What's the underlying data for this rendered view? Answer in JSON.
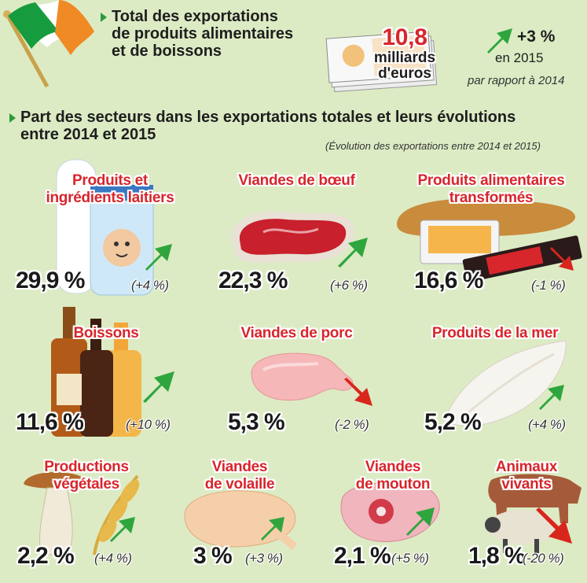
{
  "header": {
    "total_title_line1": "Total des exportations",
    "total_title_line2": "de produits alimentaires",
    "total_title_line3": "et de boissons",
    "amount_value": "10,8",
    "amount_unit_line1": "milliards",
    "amount_unit_line2": "d'euros",
    "growth_value": "+3 %",
    "growth_year": "en 2015",
    "growth_comparison": "par rapport à 2014"
  },
  "section": {
    "title_line1": "Part des secteurs dans les exportations totales et leurs évolutions",
    "title_line2": "entre 2014 et 2015",
    "note": "(Évolution des exportations entre 2014 et 2015)"
  },
  "colors": {
    "up": "#2fa53e",
    "down": "#d9261c",
    "title": "#d7262c",
    "background": "#dcebc4"
  },
  "sectors": [
    {
      "name_line1": "Produits et",
      "name_line2": "ingrédients laitiers",
      "share": "29,9 %",
      "change": "(+4 %)",
      "trend": "up",
      "icon": "milk-bottle-icon"
    },
    {
      "name_line1": "Viandes de bœuf",
      "name_line2": "",
      "share": "22,3 %",
      "change": "(+6 %)",
      "trend": "up",
      "icon": "beef-steak-icon"
    },
    {
      "name_line1": "Produits alimentaires",
      "name_line2": "transformés",
      "share": "16,6 %",
      "change": "(-1 %)",
      "trend": "down",
      "icon": "processed-food-icon"
    },
    {
      "name_line1": "Boissons",
      "name_line2": "",
      "share": "11,6 %",
      "change": "(+10 %)",
      "trend": "up",
      "icon": "bottles-icon"
    },
    {
      "name_line1": "Viandes de porc",
      "name_line2": "",
      "share": "5,3 %",
      "change": "(-2 %)",
      "trend": "down",
      "icon": "pork-chop-icon"
    },
    {
      "name_line1": "Produits de la mer",
      "name_line2": "",
      "share": "5,2 %",
      "change": "(+4 %)",
      "trend": "up",
      "icon": "fish-fillet-icon"
    },
    {
      "name_line1": "Productions",
      "name_line2": "végétales",
      "share": "2,2 %",
      "change": "(+4 %)",
      "trend": "up",
      "icon": "mushroom-wheat-icon"
    },
    {
      "name_line1": "Viandes",
      "name_line2": "de volaille",
      "share": "3 %",
      "change": "(+3 %)",
      "trend": "up",
      "icon": "poultry-icon"
    },
    {
      "name_line1": "Viandes",
      "name_line2": "de mouton",
      "share": "2,1 %",
      "change": "(+5 %)",
      "trend": "up",
      "icon": "lamb-meat-icon"
    },
    {
      "name_line1": "Animaux",
      "name_line2": "vivants",
      "share": "1,8 %",
      "change": "(-20 %)",
      "trend": "down",
      "icon": "livestock-icon"
    }
  ]
}
